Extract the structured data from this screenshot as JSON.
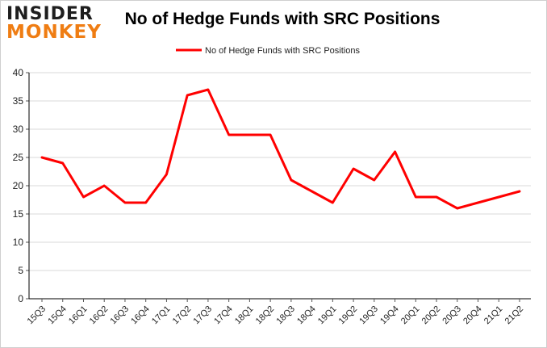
{
  "logo": {
    "line1": "INSIDER",
    "line2": "MONKEY"
  },
  "colors": {
    "line": "#ff0000",
    "grid": "#d9d9d9",
    "axis": "#000000",
    "logo_dark": "#1e1e1e",
    "logo_accent": "#ef7d13"
  },
  "chart_data": {
    "type": "line",
    "title": "No of Hedge Funds with SRC Positions",
    "xlabel": "",
    "ylabel": "",
    "categories": [
      "15Q3",
      "15Q4",
      "16Q1",
      "16Q2",
      "16Q3",
      "16Q4",
      "17Q1",
      "17Q2",
      "17Q3",
      "17Q4",
      "18Q1",
      "18Q2",
      "18Q3",
      "18Q4",
      "19Q1",
      "19Q2",
      "19Q3",
      "19Q4",
      "20Q1",
      "20Q2",
      "20Q3",
      "20Q4",
      "21Q1",
      "21Q2"
    ],
    "series": [
      {
        "name": "No of Hedge Funds with SRC Positions",
        "values": [
          25,
          24,
          18,
          20,
          17,
          17,
          22,
          36,
          37,
          29,
          29,
          29,
          21,
          19,
          17,
          23,
          21,
          26,
          18,
          18,
          16,
          17,
          18,
          19
        ]
      }
    ],
    "ylim": [
      0,
      40
    ],
    "yticks": [
      0,
      5,
      10,
      15,
      20,
      25,
      30,
      35,
      40
    ],
    "grid": true,
    "legend_position": "top-center"
  }
}
